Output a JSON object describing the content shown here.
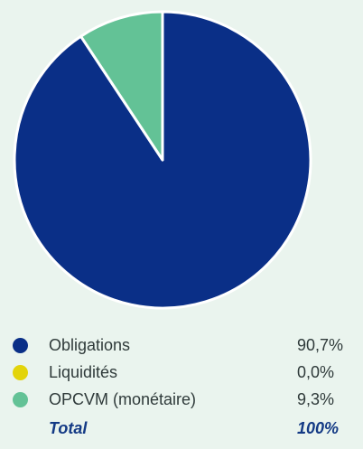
{
  "chart_data": {
    "type": "pie",
    "slices": [
      {
        "label": "Obligations",
        "value": 90.7,
        "display": "90,7%",
        "color": "#0a2f87"
      },
      {
        "label": "Liquidités",
        "value": 0.0,
        "display": "0,0%",
        "color": "#e3d40b"
      },
      {
        "label": "OPCVM (monétaire)",
        "value": 9.3,
        "display": "9,3%",
        "color": "#63c296"
      }
    ],
    "total": {
      "label": "Total",
      "display": "100%"
    },
    "legend_position": "bottom"
  }
}
